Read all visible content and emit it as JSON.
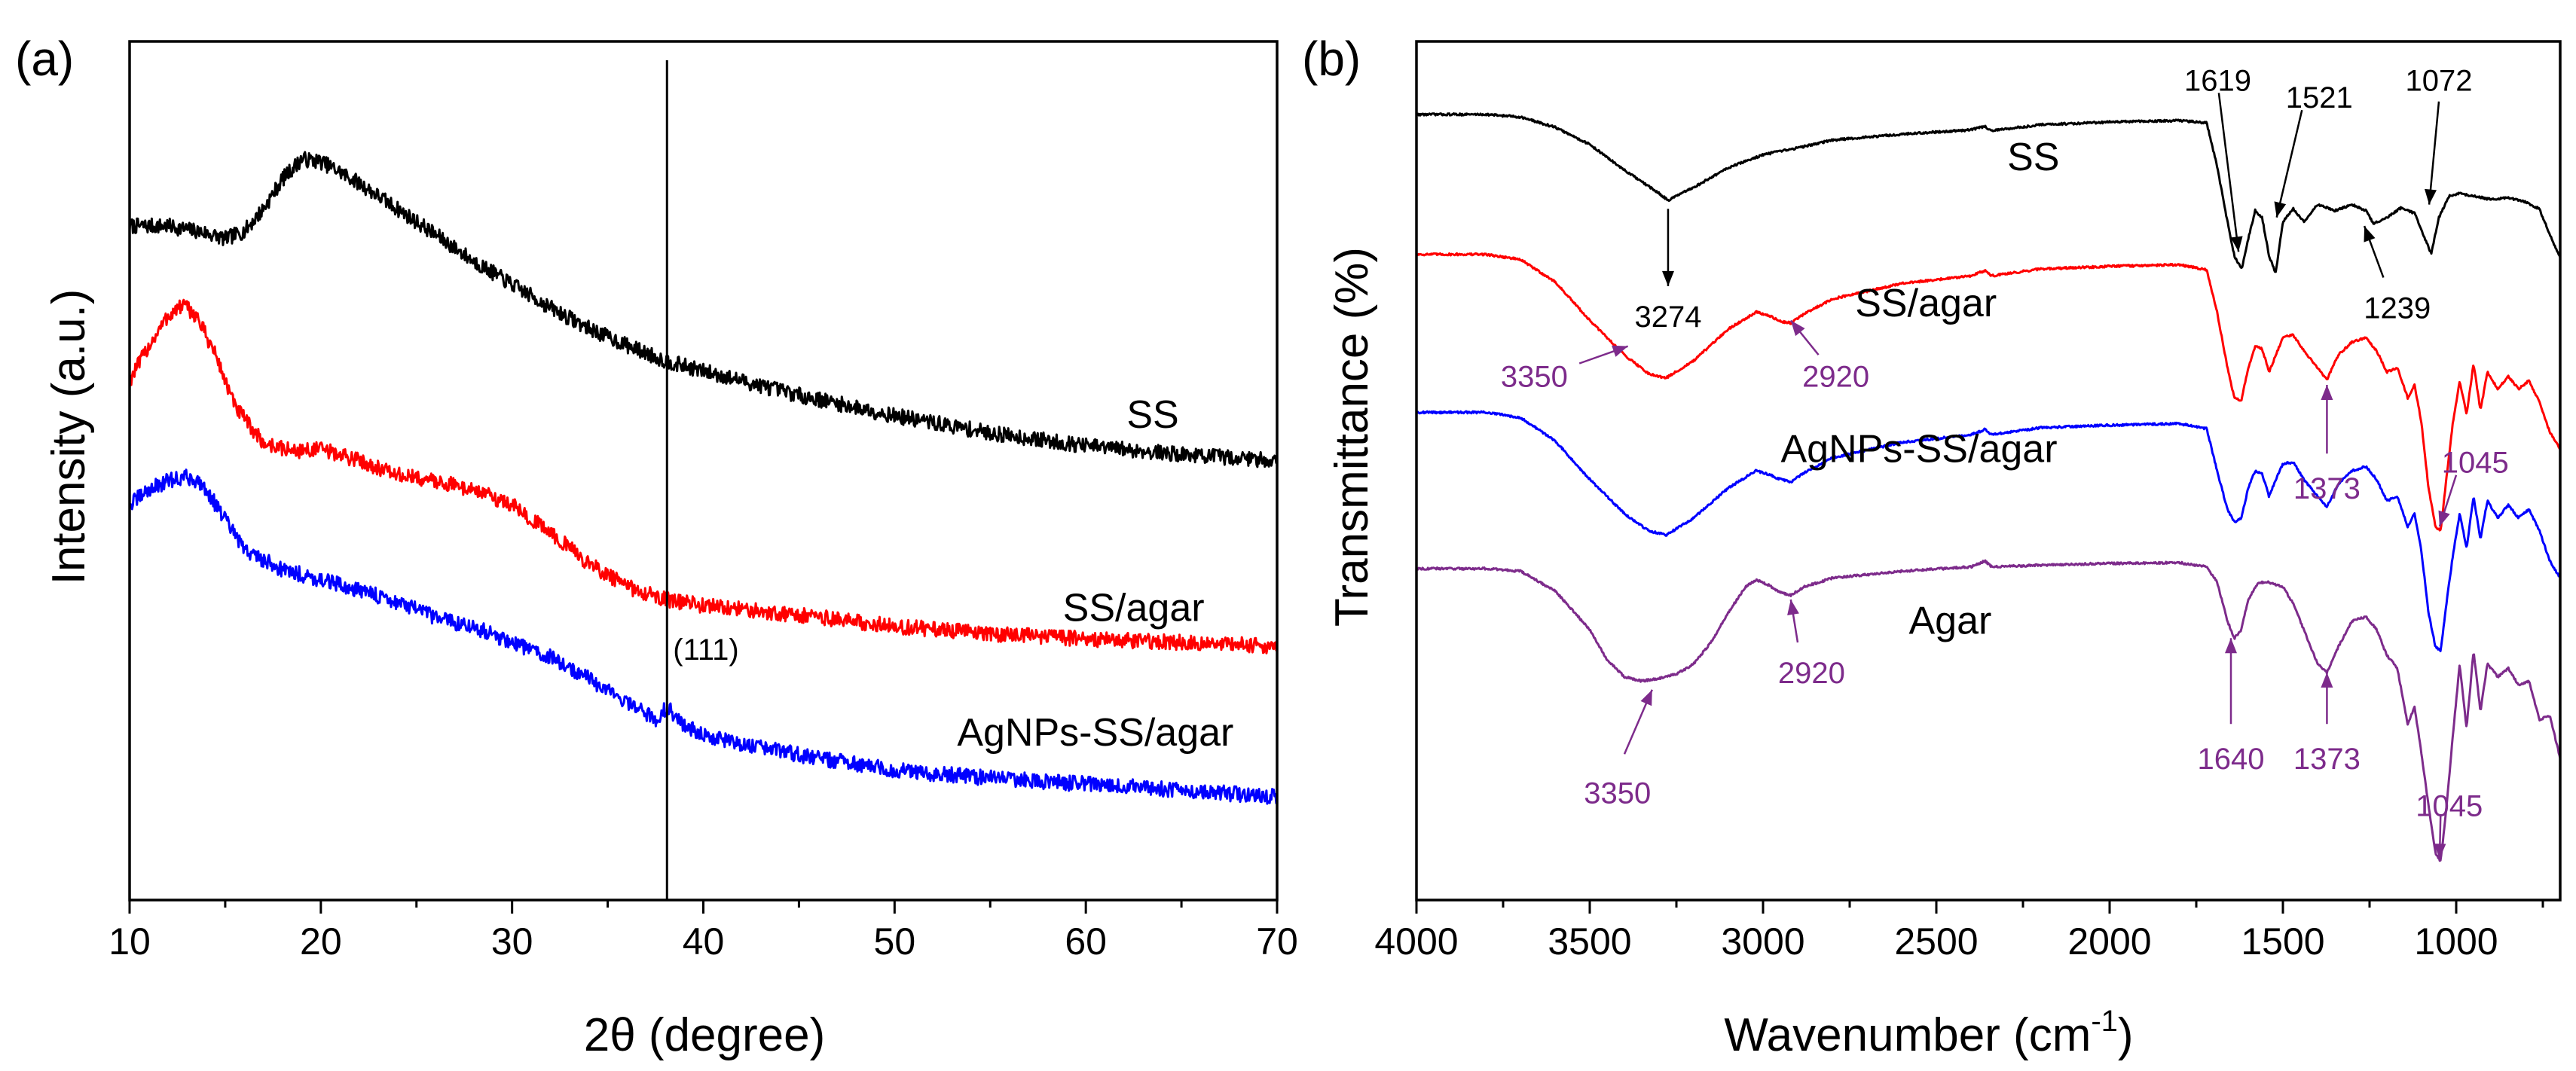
{
  "chart_data": [
    {
      "type": "line",
      "panel_label": "(a)",
      "xlabel": "2θ (degree)",
      "ylabel": "Intensity (a.u.)",
      "xlim": [
        10,
        70
      ],
      "ylim": [
        0,
        100
      ],
      "xticks": [
        "10",
        "20",
        "30",
        "40",
        "50",
        "60",
        "70"
      ],
      "reference_line": {
        "x": 38.1,
        "label": "(111)"
      },
      "series": [
        {
          "name": "SS",
          "color": "#000000",
          "x": [
            10,
            12,
            14,
            15,
            16,
            17,
            18,
            19,
            20,
            21,
            22,
            24,
            26,
            28,
            30,
            32,
            34,
            36,
            38,
            40,
            45,
            50,
            55,
            60,
            65,
            70
          ],
          "y": [
            78.5,
            78.5,
            77.7,
            77.0,
            77.9,
            80.5,
            84.0,
            86.3,
            86.0,
            84.8,
            83.5,
            80.5,
            77.5,
            74.4,
            71.7,
            69.0,
            66.6,
            64.6,
            62.8,
            61.6,
            58.8,
            56.4,
            54.4,
            52.9,
            51.9,
            51.2
          ],
          "label_at": [
            63.5,
            55
          ]
        },
        {
          "name": "SS/agar",
          "color": "#ff0000",
          "x": [
            10,
            11,
            12,
            12.8,
            13.5,
            14.5,
            15.5,
            17,
            18.5,
            20,
            22,
            24,
            26,
            28,
            30,
            32,
            34,
            36,
            38,
            40,
            45,
            50,
            55,
            60,
            65,
            70
          ],
          "y": [
            60.5,
            64.5,
            68.0,
            69.3,
            68.0,
            63.5,
            57.5,
            53.2,
            52.3,
            52.5,
            51.2,
            49.5,
            48.8,
            47.8,
            46.0,
            42.8,
            39.2,
            36.5,
            35.0,
            34.3,
            33.2,
            31.9,
            31.0,
            30.4,
            30.0,
            29.6
          ],
          "label_at": [
            62.5,
            32.5
          ]
        },
        {
          "name": "AgNPs-SS/agar",
          "color": "#0000ff",
          "x": [
            10,
            11,
            12,
            13,
            13.8,
            14.8,
            16,
            18,
            20,
            22,
            24,
            26,
            28,
            30,
            32,
            34,
            36,
            37.5,
            38.1,
            38.8,
            40,
            42,
            45,
            50,
            55,
            60,
            65,
            70
          ],
          "y": [
            46.0,
            47.8,
            48.8,
            49.3,
            48.5,
            45.0,
            40.8,
            38.5,
            37.3,
            36.1,
            34.7,
            32.9,
            31.8,
            30.0,
            28.3,
            25.8,
            23.0,
            21.0,
            22.5,
            20.7,
            19.2,
            18.2,
            16.9,
            15.1,
            14.2,
            13.5,
            12.8,
            12.0
          ],
          "label_at": [
            60.5,
            18
          ]
        }
      ]
    },
    {
      "type": "line",
      "panel_label": "(b)",
      "xlabel": "Wavenumber (cm",
      "xlabel_sup": "-1",
      "xlabel_end": ")",
      "ylabel": "Transmittance (%)",
      "xlim": [
        4000,
        700
      ],
      "ylim": [
        0,
        100
      ],
      "xticks": [
        "4000",
        "3500",
        "3000",
        "2500",
        "2000",
        "1500",
        "1000"
      ],
      "series": [
        {
          "name": "SS",
          "color": "#000000",
          "x": [
            4000,
            3800,
            3700,
            3600,
            3500,
            3400,
            3300,
            3274,
            3200,
            3100,
            3000,
            2950,
            2900,
            2800,
            2600,
            2400,
            2360,
            2340,
            2200,
            2000,
            1800,
            1720,
            1690,
            1660,
            1640,
            1619,
            1600,
            1580,
            1560,
            1540,
            1521,
            1500,
            1470,
            1440,
            1400,
            1350,
            1300,
            1260,
            1239,
            1200,
            1160,
            1120,
            1090,
            1072,
            1050,
            1020,
            990,
            950,
            900,
            850,
            800,
            760,
            730,
            700
          ],
          "y": [
            91.5,
            91.5,
            91.2,
            90.0,
            88.0,
            85.0,
            82.3,
            81.5,
            83.0,
            85.3,
            86.8,
            87.2,
            87.6,
            88.5,
            89.2,
            89.7,
            90.1,
            89.6,
            90.3,
            90.6,
            90.8,
            90.5,
            85.5,
            79.0,
            75.0,
            73.5,
            77.0,
            80.3,
            79.5,
            75.0,
            73.0,
            79.0,
            80.5,
            79.0,
            81.0,
            80.3,
            81.0,
            80.3,
            78.8,
            79.5,
            80.6,
            80.0,
            77.0,
            75.3,
            79.5,
            82.0,
            82.3,
            82.0,
            81.6,
            81.8,
            81.3,
            80.5,
            77.5,
            74.8
          ],
          "label_at": [
            2220,
            85
          ]
        },
        {
          "name": "SS/agar",
          "color": "#ff0000",
          "x": [
            4000,
            3800,
            3700,
            3600,
            3500,
            3400,
            3330,
            3280,
            3200,
            3100,
            3020,
            2980,
            2950,
            2920,
            2880,
            2800,
            2600,
            2400,
            2360,
            2340,
            2200,
            2000,
            1800,
            1720,
            1690,
            1660,
            1640,
            1620,
            1600,
            1580,
            1560,
            1540,
            1520,
            1500,
            1470,
            1440,
            1400,
            1373,
            1340,
            1300,
            1260,
            1230,
            1200,
            1170,
            1140,
            1120,
            1100,
            1080,
            1060,
            1045,
            1030,
            1010,
            990,
            970,
            950,
            930,
            910,
            880,
            850,
            820,
            790,
            760,
            730,
            700
          ],
          "y": [
            75.2,
            75.2,
            74.6,
            72.0,
            67.5,
            63.5,
            61.3,
            60.8,
            62.8,
            66.5,
            68.5,
            68.0,
            67.4,
            67.2,
            68.3,
            70.0,
            71.8,
            72.7,
            73.3,
            72.7,
            73.5,
            73.8,
            74.0,
            73.4,
            68.5,
            62.0,
            58.5,
            58.2,
            62.0,
            64.5,
            64.2,
            61.5,
            63.5,
            65.5,
            65.8,
            64.0,
            62.0,
            60.6,
            63.5,
            65.0,
            65.5,
            64.0,
            61.5,
            62.0,
            58.5,
            60.0,
            55.5,
            48.0,
            43.5,
            43.0,
            48.5,
            55.5,
            60.5,
            56.5,
            62.5,
            57.0,
            61.5,
            59.5,
            61.0,
            59.5,
            60.5,
            58.0,
            54.5,
            52.5
          ],
          "label_at": [
            2530,
            68
          ]
        },
        {
          "name": "AgNPs-SS/agar",
          "color": "#0000ff",
          "x": [
            4000,
            3800,
            3700,
            3600,
            3500,
            3400,
            3330,
            3280,
            3200,
            3100,
            3020,
            2980,
            2950,
            2920,
            2880,
            2800,
            2600,
            2400,
            2360,
            2340,
            2200,
            2000,
            1800,
            1720,
            1690,
            1660,
            1640,
            1620,
            1600,
            1580,
            1560,
            1540,
            1520,
            1500,
            1470,
            1440,
            1400,
            1373,
            1340,
            1300,
            1260,
            1230,
            1200,
            1170,
            1140,
            1120,
            1100,
            1080,
            1060,
            1045,
            1030,
            1010,
            990,
            970,
            950,
            930,
            910,
            880,
            850,
            820,
            790,
            760,
            730,
            700
          ],
          "y": [
            56.8,
            56.8,
            56.2,
            53.5,
            49.0,
            45.0,
            43.0,
            42.5,
            44.5,
            48.0,
            50.0,
            49.5,
            49.0,
            48.7,
            49.8,
            51.5,
            53.3,
            54.2,
            54.8,
            54.2,
            55.0,
            55.3,
            55.5,
            54.9,
            50.0,
            45.5,
            44.0,
            44.5,
            48.0,
            50.0,
            49.7,
            47.0,
            49.0,
            50.8,
            51.0,
            49.0,
            47.0,
            45.8,
            48.5,
            50.0,
            50.5,
            49.0,
            46.5,
            47.0,
            43.5,
            45.0,
            40.5,
            33.5,
            29.5,
            29.0,
            34.0,
            40.0,
            45.0,
            41.0,
            47.0,
            42.0,
            46.5,
            44.5,
            46.0,
            44.5,
            45.5,
            43.0,
            39.5,
            37.5
          ],
          "label_at": [
            2550,
            51
          ]
        },
        {
          "name": "Agar",
          "color": "#7d2b8b",
          "x": [
            4000,
            3800,
            3700,
            3600,
            3500,
            3450,
            3400,
            3350,
            3300,
            3250,
            3200,
            3150,
            3100,
            3050,
            3020,
            2980,
            2950,
            2920,
            2880,
            2800,
            2600,
            2400,
            2360,
            2340,
            2200,
            2000,
            1800,
            1720,
            1690,
            1660,
            1640,
            1620,
            1600,
            1570,
            1540,
            1500,
            1470,
            1440,
            1400,
            1373,
            1340,
            1300,
            1260,
            1230,
            1200,
            1170,
            1140,
            1120,
            1100,
            1080,
            1060,
            1045,
            1030,
            1010,
            990,
            970,
            950,
            930,
            910,
            880,
            850,
            820,
            790,
            760,
            730,
            700
          ],
          "y": [
            38.6,
            38.6,
            38.3,
            36.0,
            31.5,
            28.0,
            26.0,
            25.5,
            25.8,
            26.3,
            27.5,
            30.0,
            33.5,
            36.5,
            37.3,
            36.6,
            35.8,
            35.5,
            36.5,
            37.5,
            38.3,
            38.8,
            39.5,
            38.8,
            39.0,
            39.2,
            39.3,
            38.8,
            37.0,
            32.5,
            30.5,
            31.5,
            35.0,
            37.0,
            37.0,
            36.5,
            34.5,
            31.5,
            27.5,
            26.5,
            29.5,
            32.5,
            33.0,
            31.5,
            28.5,
            27.0,
            20.5,
            22.5,
            17.0,
            11.0,
            5.5,
            4.5,
            10.0,
            19.0,
            27.5,
            20.0,
            29.0,
            22.0,
            27.5,
            26.0,
            27.0,
            25.0,
            25.5,
            21.0,
            21.5,
            16.5
          ],
          "label_at": [
            2460,
            31
          ]
        }
      ],
      "annotations": [
        {
          "text": "3274",
          "color": "#000000",
          "from": [
            3274,
            80.5
          ],
          "to": [
            3274,
            71.5
          ],
          "label_at": [
            3274,
            68
          ]
        },
        {
          "text": "1619",
          "color": "#000000",
          "from": [
            1685,
            94
          ],
          "to": [
            1628,
            75.5
          ],
          "label_at": [
            1688,
            95.5
          ]
        },
        {
          "text": "1521",
          "color": "#000000",
          "from": [
            1445,
            92
          ],
          "to": [
            1518,
            79.5
          ],
          "label_at": [
            1395,
            93.5
          ]
        },
        {
          "text": "1072",
          "color": "#000000",
          "from": [
            1050,
            93
          ],
          "to": [
            1078,
            81
          ],
          "label_at": [
            1050,
            95.5
          ]
        },
        {
          "text": "1239",
          "color": "#000000",
          "from": [
            1210,
            72.5
          ],
          "to": [
            1265,
            78.5
          ],
          "label_at": [
            1170,
            69
          ]
        },
        {
          "text": "3350",
          "color": "#7d2b8b",
          "from": [
            3530,
            62.5
          ],
          "to": [
            3390,
            64.5
          ],
          "label_at": [
            3660,
            61
          ]
        },
        {
          "text": "2920",
          "color": "#7d2b8b",
          "from": [
            2840,
            63.5
          ],
          "to": [
            2920,
            67.5
          ],
          "label_at": [
            2790,
            61
          ]
        },
        {
          "text": "1373",
          "color": "#7d2b8b",
          "from": [
            1373,
            52
          ],
          "to": [
            1373,
            60
          ],
          "label_at": [
            1373,
            48
          ]
        },
        {
          "text": "1045",
          "color": "#7d2b8b",
          "from": [
            1000,
            49.5
          ],
          "to": [
            1048,
            43.5
          ],
          "label_at": [
            945,
            51
          ]
        },
        {
          "text": "3350",
          "color": "#7d2b8b",
          "from": [
            3400,
            17
          ],
          "to": [
            3320,
            24.5
          ],
          "label_at": [
            3420,
            12.5
          ]
        },
        {
          "text": "2920",
          "color": "#7d2b8b",
          "from": [
            2900,
            30
          ],
          "to": [
            2920,
            35
          ],
          "label_at": [
            2860,
            26.5
          ]
        },
        {
          "text": "1640",
          "color": "#7d2b8b",
          "from": [
            1650,
            20.5
          ],
          "to": [
            1650,
            30.5
          ],
          "label_at": [
            1650,
            16.5
          ]
        },
        {
          "text": "1373",
          "color": "#7d2b8b",
          "from": [
            1373,
            20.5
          ],
          "to": [
            1373,
            26.5
          ],
          "label_at": [
            1373,
            16.5
          ]
        },
        {
          "text": "1045",
          "color": "#7d2b8b",
          "from": [
            1045,
            10
          ],
          "to": [
            1048,
            4.8
          ],
          "label_at": [
            1020,
            11
          ]
        }
      ]
    }
  ]
}
